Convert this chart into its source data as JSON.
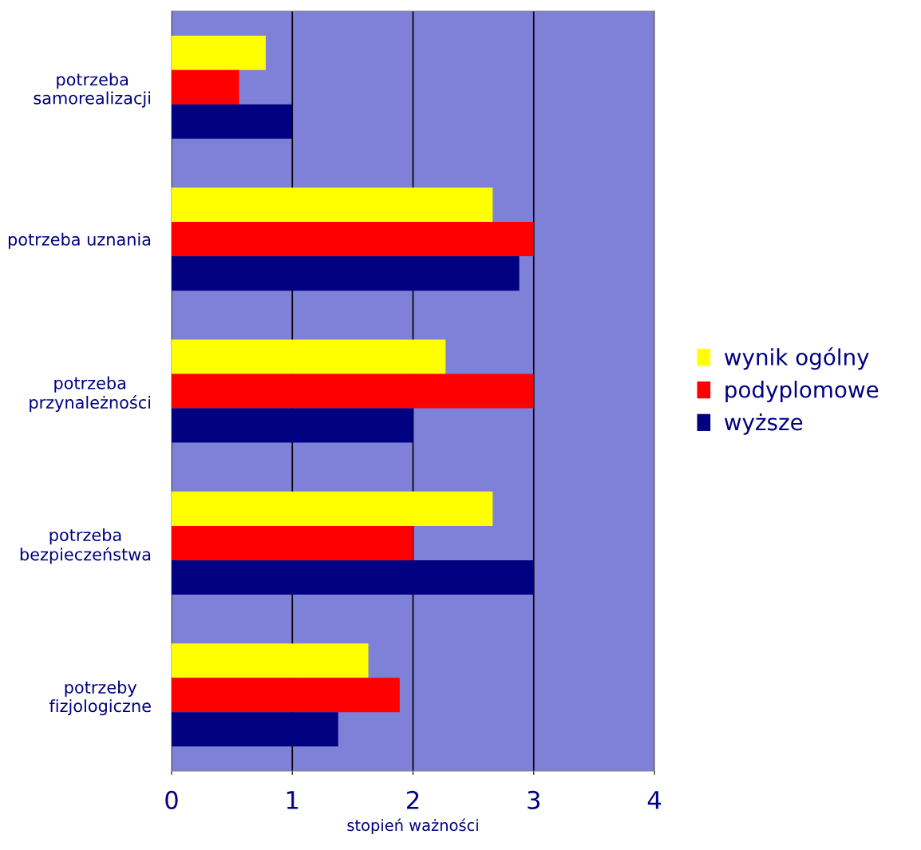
{
  "chart_data": {
    "type": "bar",
    "orientation": "horizontal",
    "xlabel": "stopień ważności",
    "categories": [
      "potrzeba\nsamorealizacji",
      "potrzeba uznania",
      "potrzeba\nprzynależności",
      "potrzeba\nbezpieczeństwa",
      "potrzeby\nfizjologiczne"
    ],
    "series": [
      {
        "name": "wynik ogólny",
        "color": "#ffff00",
        "values": [
          0.78,
          2.66,
          2.27,
          2.66,
          1.63
        ]
      },
      {
        "name": "podyplomowe",
        "color": "#ff0000",
        "values": [
          0.56,
          3.0,
          3.0,
          2.0,
          1.89
        ]
      },
      {
        "name": "wyższe",
        "color": "#000080",
        "values": [
          1.0,
          2.88,
          2.0,
          3.0,
          1.38
        ]
      }
    ],
    "xlim": [
      0,
      4
    ],
    "xticks": [
      0,
      1,
      2,
      3,
      4
    ],
    "grid": "x",
    "legend": "right"
  }
}
